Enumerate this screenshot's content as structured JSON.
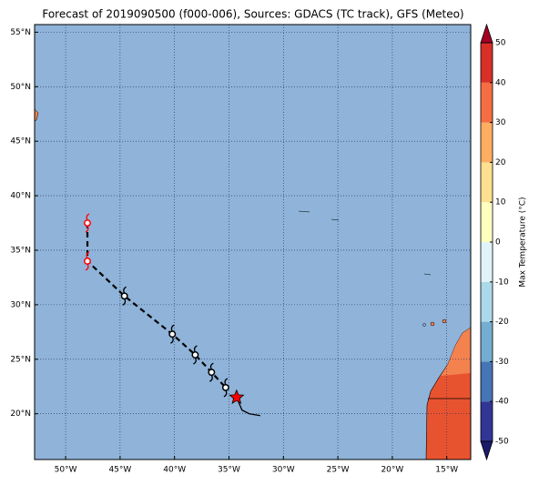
{
  "chart_data": {
    "type": "map",
    "title": "Forecast of 2019090500 (f000-006), Sources: GDACS (TC track), GFS (Meteo)",
    "xlim": [
      -52.85,
      -12.8
    ],
    "ylim": [
      15.8,
      55.7
    ],
    "xticks": [
      {
        "value": -50,
        "label": "50°W"
      },
      {
        "value": -45,
        "label": "45°W"
      },
      {
        "value": -40,
        "label": "40°W"
      },
      {
        "value": -35,
        "label": "35°W"
      },
      {
        "value": -30,
        "label": "30°W"
      },
      {
        "value": -25,
        "label": "25°W"
      },
      {
        "value": -20,
        "label": "20°W"
      },
      {
        "value": -15,
        "label": "15°W"
      }
    ],
    "yticks": [
      {
        "value": 20,
        "label": "20°N"
      },
      {
        "value": 25,
        "label": "25°N"
      },
      {
        "value": 30,
        "label": "30°N"
      },
      {
        "value": 35,
        "label": "35°N"
      },
      {
        "value": 40,
        "label": "40°N"
      },
      {
        "value": 45,
        "label": "45°N"
      },
      {
        "value": 50,
        "label": "50°N"
      },
      {
        "value": 55,
        "label": "55°N"
      }
    ],
    "grid": true,
    "track": {
      "lon": [
        -48,
        -48,
        -44.6,
        -40.2,
        -38.1,
        -36.6,
        -35.3
      ],
      "lat": [
        37.5,
        34,
        30.8,
        27.3,
        25.4,
        23.8,
        22.4
      ],
      "marker_colors": [
        "#ff0000",
        "#ff0000",
        "#000000",
        "#000000",
        "#000000",
        "#000000",
        "#000000"
      ]
    },
    "current_position": {
      "lon": -34.3,
      "lat": 21.5,
      "color": "#ff0000"
    },
    "colorbar": {
      "label": "Max Temperature (°C)",
      "lim": [
        -50,
        50
      ],
      "ticks": [
        -50,
        -40,
        -30,
        -20,
        -10,
        0,
        10,
        20,
        30,
        40,
        50
      ],
      "colors": [
        "#313695",
        "#4575b4",
        "#74add1",
        "#abd9e9",
        "#e0f3f8",
        "#ffffbf",
        "#fee090",
        "#fdae61",
        "#f46d43",
        "#d73027"
      ]
    }
  }
}
